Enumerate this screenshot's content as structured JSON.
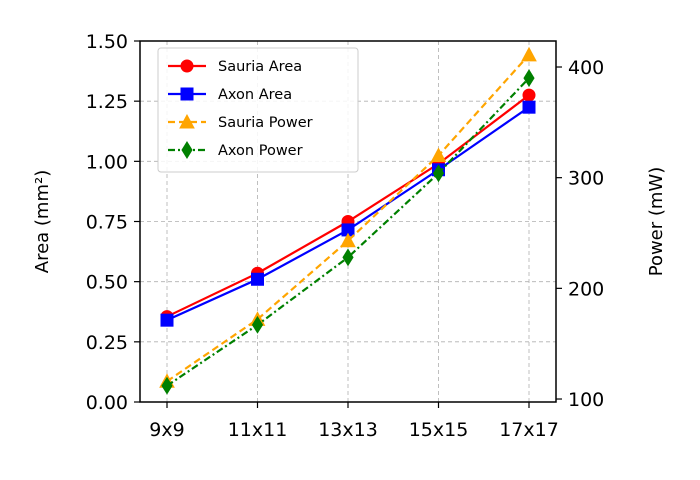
{
  "chart_data": {
    "type": "line",
    "categories": [
      "9x9",
      "11x11",
      "13x13",
      "15x15",
      "17x17"
    ],
    "xlabel": "",
    "ylabel_left": "Area (mm²)",
    "ylabel_right": "Power (mW)",
    "ylim_left": [
      0,
      1.5
    ],
    "ylim_right": [
      97.3,
      423.5
    ],
    "yticks_left": [
      "0.00",
      "0.25",
      "0.50",
      "0.75",
      "1.00",
      "1.25",
      "1.50"
    ],
    "yticks_right": [
      "100",
      "200",
      "300",
      "400"
    ],
    "grid": true,
    "legend_position": "upper-left",
    "series": [
      {
        "name": "Sauria Area",
        "axis": "left",
        "values": [
          0.355,
          0.535,
          0.75,
          0.99,
          1.275
        ],
        "color": "#ff0000",
        "marker": "circle",
        "line": "solid"
      },
      {
        "name": "Axon Area",
        "axis": "left",
        "values": [
          0.34,
          0.51,
          0.715,
          0.965,
          1.225
        ],
        "color": "#0000ff",
        "marker": "square",
        "line": "solid"
      },
      {
        "name": "Sauria Power",
        "axis": "right",
        "values": [
          116,
          172,
          243,
          320,
          411
        ],
        "color": "#ffa500",
        "marker": "triangle",
        "line": "dashed"
      },
      {
        "name": "Axon Power",
        "axis": "right",
        "values": [
          112,
          167,
          228,
          304,
          390
        ],
        "color": "#008000",
        "marker": "diamond",
        "line": "dashdot"
      }
    ]
  }
}
